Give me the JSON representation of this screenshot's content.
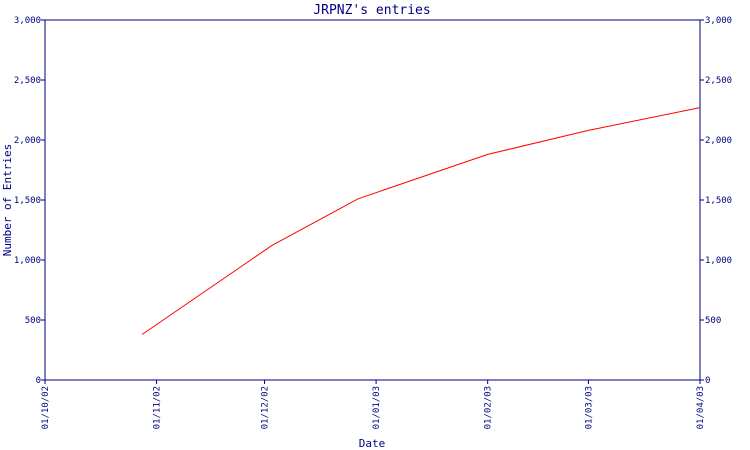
{
  "chart_data": {
    "type": "line",
    "title": "JRPNZ's entries",
    "xlabel": "Date",
    "ylabel": "Number of Entries",
    "x_ticks": [
      "01/10/02",
      "01/11/02",
      "01/12/02",
      "01/01/03",
      "01/02/03",
      "01/03/03",
      "01/04/03"
    ],
    "y_ticks": [
      0,
      500,
      1000,
      1500,
      2000,
      2500,
      3000
    ],
    "y_tick_labels": [
      "0",
      "500",
      "1,000",
      "1,500",
      "2,000",
      "2,500",
      "3,000"
    ],
    "ylim": [
      0,
      3000
    ],
    "grid": false,
    "series": [
      {
        "color": "#ff0000",
        "x": [
          "2002-10-28",
          "2002-12-03",
          "2002-12-27",
          "2003-02-01",
          "2003-03-01",
          "2003-04-01"
        ],
        "y": [
          380,
          1120,
          1510,
          1880,
          2080,
          2270
        ]
      }
    ]
  }
}
